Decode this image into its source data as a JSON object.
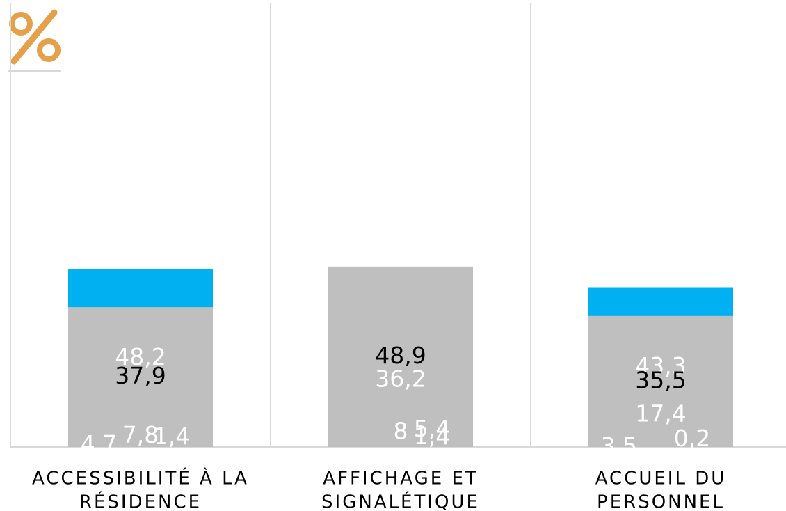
{
  "chart_data": {
    "type": "stacked_bar",
    "categories": [
      [
        "ACCESSIBILITÉ À LA",
        "RÉSIDENCE"
      ],
      [
        "AFFICHAGE ET",
        "SIGNALÉTIQUE"
      ],
      [
        "ACCUEIL DU",
        "PERSONNEL"
      ]
    ],
    "series": [
      {
        "color": "#ff3399",
        "label_color": "#ffffff",
        "values": [
          7.8,
          5.4,
          17.4
        ],
        "value_labels": [
          "7,8",
          "5,4",
          "17,4"
        ]
      },
      {
        "color": "#00b0f0",
        "label_color": "#ffffff",
        "values": [
          48.2,
          36.2,
          43.3
        ],
        "value_labels": [
          "48,2",
          "36,2",
          "43,3"
        ]
      },
      {
        "color": "#7030a0",
        "label_color": "#ffffff",
        "values": [
          4.7,
          8,
          3.5
        ],
        "value_labels": [
          "4,7",
          "8",
          "3,5"
        ]
      },
      {
        "color": "#77a14e",
        "label_color": "#ffffff",
        "values": [
          1.4,
          1.4,
          0.2
        ],
        "value_labels": [
          "1,4",
          "1,4",
          "0,2"
        ]
      },
      {
        "color": "#bfbfbf",
        "label_color": "#000000",
        "values": [
          37.9,
          48.9,
          35.5
        ],
        "value_labels": [
          "37,9",
          "48,9",
          "35,5"
        ]
      }
    ],
    "ylim": [
      0,
      100
    ]
  }
}
